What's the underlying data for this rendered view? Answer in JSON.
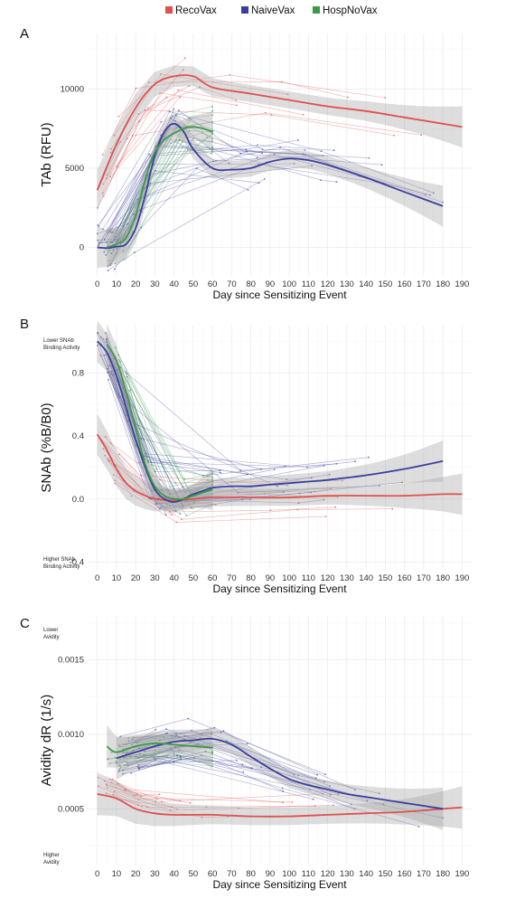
{
  "colors": {
    "RecoVax": "#e0504f",
    "NaiveVax": "#3a3f9e",
    "HospNoVax": "#3a9a4a",
    "band": "#9e9e9e"
  },
  "legend": [
    {
      "name": "RecoVax",
      "color": "#e0504f"
    },
    {
      "name": "NaiveVax",
      "color": "#3a3f9e"
    },
    {
      "name": "HospNoVax",
      "color": "#3a9a4a"
    }
  ],
  "chart_data": [
    {
      "panel": "A",
      "type": "line",
      "xlabel": "Day since Sensitizing Event",
      "ylabel": "TAb (RFU)",
      "xlim": [
        -5,
        195
      ],
      "ylim": [
        -1800,
        13500
      ],
      "xticks": [
        0,
        10,
        20,
        30,
        40,
        50,
        60,
        70,
        80,
        90,
        100,
        110,
        120,
        130,
        140,
        150,
        160,
        170,
        180,
        190
      ],
      "yticks": [
        0,
        5000,
        10000
      ],
      "ytick_labels": [
        "0",
        "5000",
        "10000"
      ],
      "annotations_top": "",
      "annotations_bottom": "",
      "series": [
        {
          "name": "RecoVax",
          "x": [
            0,
            10,
            20,
            30,
            40,
            50,
            60,
            80,
            100,
            120,
            140,
            160,
            180,
            190
          ],
          "y": [
            3600,
            6500,
            8800,
            10300,
            10800,
            10800,
            10100,
            9700,
            9300,
            8900,
            8600,
            8200,
            7800,
            7600
          ]
        },
        {
          "name": "NaiveVax",
          "x": [
            0,
            5,
            10,
            15,
            20,
            25,
            30,
            35,
            40,
            45,
            50,
            60,
            70,
            80,
            90,
            100,
            110,
            120,
            140,
            160,
            180
          ],
          "y": [
            0,
            -50,
            50,
            200,
            1200,
            3300,
            5800,
            7300,
            7800,
            7300,
            6200,
            5000,
            4900,
            5000,
            5400,
            5600,
            5500,
            5200,
            4400,
            3500,
            2600
          ]
        },
        {
          "name": "HospNoVax",
          "x": [
            5,
            10,
            15,
            20,
            25,
            30,
            35,
            40,
            45,
            50,
            55,
            60
          ],
          "y": [
            0,
            200,
            600,
            2000,
            4300,
            6000,
            6800,
            7200,
            7500,
            7600,
            7500,
            7300
          ]
        }
      ]
    },
    {
      "panel": "B",
      "type": "line",
      "xlabel": "Day since Sensitizing Event",
      "ylabel": "SNAb (%B/B0)",
      "xlim": [
        -5,
        195
      ],
      "ylim": [
        -0.45,
        1.1
      ],
      "xticks": [
        0,
        10,
        20,
        30,
        40,
        50,
        60,
        70,
        80,
        90,
        100,
        110,
        120,
        130,
        140,
        150,
        160,
        170,
        180,
        190
      ],
      "yticks": [
        -0.4,
        0.0,
        0.4,
        0.8
      ],
      "ytick_labels": [
        "-0.4",
        "0.0",
        "0.4",
        "0.8"
      ],
      "annotations_top": [
        "Lower SNAb",
        "Binding Activity"
      ],
      "annotations_bottom": [
        "Higher SNAb",
        "Binding Activity"
      ],
      "series": [
        {
          "name": "RecoVax",
          "x": [
            0,
            5,
            10,
            15,
            20,
            25,
            30,
            40,
            50,
            60,
            80,
            100,
            120,
            140,
            160,
            180,
            190
          ],
          "y": [
            0.41,
            0.31,
            0.19,
            0.1,
            0.05,
            0.02,
            0.0,
            -0.01,
            0.0,
            0.01,
            0.01,
            0.01,
            0.02,
            0.02,
            0.02,
            0.03,
            0.03
          ]
        },
        {
          "name": "NaiveVax",
          "x": [
            0,
            5,
            10,
            15,
            20,
            25,
            30,
            35,
            40,
            45,
            50,
            55,
            60,
            70,
            80,
            90,
            100,
            110,
            120,
            140,
            160,
            180
          ],
          "y": [
            1.0,
            0.93,
            0.78,
            0.58,
            0.38,
            0.2,
            0.06,
            0.0,
            -0.02,
            0.0,
            0.03,
            0.05,
            0.07,
            0.08,
            0.08,
            0.09,
            0.1,
            0.11,
            0.12,
            0.15,
            0.19,
            0.24
          ]
        },
        {
          "name": "HospNoVax",
          "x": [
            5,
            10,
            15,
            20,
            25,
            30,
            35,
            40,
            45,
            50,
            55,
            60
          ],
          "y": [
            0.98,
            0.88,
            0.68,
            0.45,
            0.22,
            0.08,
            0.02,
            0.0,
            0.0,
            0.02,
            0.04,
            0.06
          ]
        }
      ]
    },
    {
      "panel": "C",
      "type": "line",
      "xlabel": "Day since Sensitizing Event",
      "ylabel": "Avidity dR (1/s)",
      "xlim": [
        -5,
        195
      ],
      "ylim": [
        0.00012,
        0.0018
      ],
      "xticks": [
        0,
        10,
        20,
        30,
        40,
        50,
        60,
        70,
        80,
        90,
        100,
        110,
        120,
        130,
        140,
        150,
        160,
        170,
        180,
        190
      ],
      "yticks": [
        0.0005,
        0.001,
        0.0015
      ],
      "ytick_labels": [
        "0.0005",
        "0.0010",
        "0.0015"
      ],
      "annotations_top": [
        "Lower",
        "Avidity"
      ],
      "annotations_bottom": [
        "Higher",
        "Avidity"
      ],
      "series": [
        {
          "name": "RecoVax",
          "x": [
            0,
            10,
            20,
            30,
            40,
            50,
            60,
            80,
            100,
            120,
            140,
            160,
            180,
            190
          ],
          "y": [
            0.0006,
            0.00057,
            0.0005,
            0.00047,
            0.00046,
            0.00046,
            0.00046,
            0.00045,
            0.00045,
            0.00046,
            0.00047,
            0.00048,
            0.0005,
            0.00051
          ]
        },
        {
          "name": "NaiveVax",
          "x": [
            10,
            20,
            30,
            40,
            50,
            60,
            70,
            80,
            90,
            100,
            110,
            120,
            130,
            140,
            150,
            160,
            170,
            180
          ],
          "y": [
            0.00084,
            0.00088,
            0.00092,
            0.00095,
            0.00096,
            0.00097,
            0.00093,
            0.00085,
            0.00077,
            0.0007,
            0.00066,
            0.00063,
            0.0006,
            0.00058,
            0.00056,
            0.00054,
            0.00052,
            0.0005
          ]
        },
        {
          "name": "HospNoVax",
          "x": [
            5,
            10,
            20,
            30,
            40,
            50,
            60
          ],
          "y": [
            0.00092,
            0.00088,
            0.00092,
            0.00094,
            0.00093,
            0.00092,
            0.00091
          ]
        }
      ]
    }
  ]
}
